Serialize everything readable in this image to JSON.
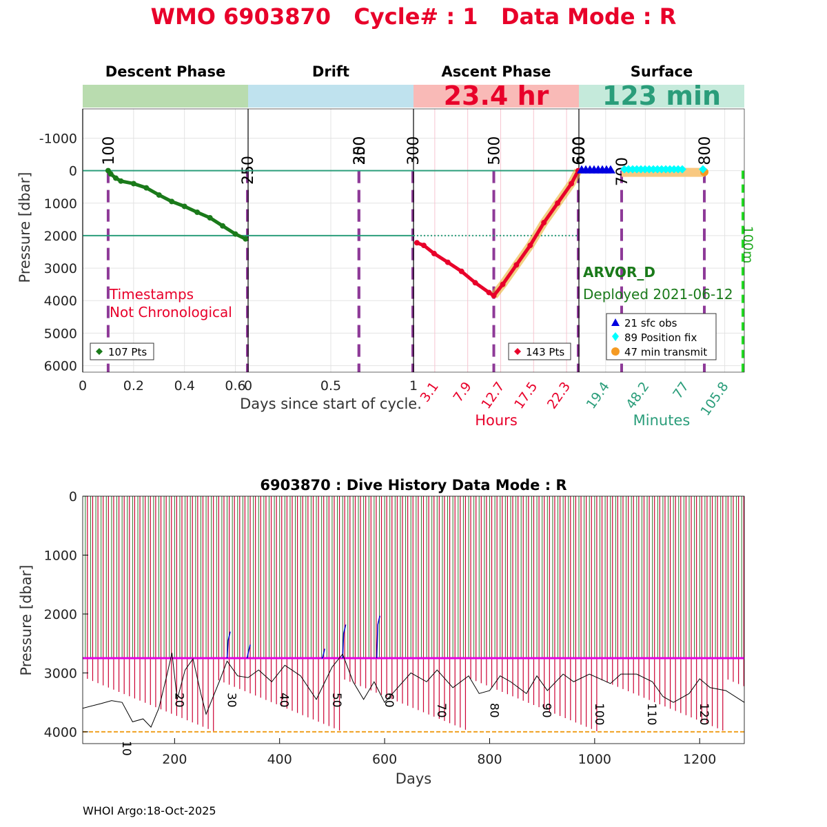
{
  "title": "WMO 6903870   Cycle# : 1   Data Mode : R",
  "footer": "WHOI Argo:18-Oct-2025",
  "colors": {
    "title": "#e8002a",
    "descent_band": "#b9dcaf",
    "drift_band": "#bfe2ee",
    "ascent_band": "#f9bab7",
    "surface_band": "#c5eadb",
    "descent_pts": "#1a7a1a",
    "ascent_pts": "#e8002a",
    "ref_line": "#2a9d7a",
    "marker_line": "#8e3a98",
    "surface_teal": "#2a9d7a",
    "sfc_obs": "#0000e0",
    "position_fix": "#00ffff",
    "transmit": "#f59a23",
    "green_dash": "#22dd22"
  },
  "chart_data": [
    {
      "type": "scatter",
      "name": "cycle-profile",
      "ylabel": "Pressure [dbar]",
      "ylim": [
        -1900,
        6200
      ],
      "yticks": [
        -1000,
        0,
        1000,
        2000,
        3000,
        4000,
        5000,
        6000
      ],
      "yticklabels": [
        "-1000",
        "0",
        "1000",
        "2000",
        "3000",
        "4000",
        "5000",
        "6000"
      ],
      "ref_lines": [
        0,
        2000
      ],
      "annotation_nonchrono": [
        "Timestamps",
        "Not Chronological"
      ],
      "float_model": "ARVOR_D",
      "deployed": "Deployed 2021-06-12",
      "legend": [
        "21 sfc obs",
        "89 Position fix",
        "47 min transmit"
      ],
      "panels": [
        {
          "phase": "descent",
          "title": "Descent Phase",
          "xlim": [
            0,
            0.65
          ],
          "xticks": [
            0,
            0.2,
            0.4,
            0.6
          ],
          "xticklabels": [
            "0",
            "0.2",
            "0.4",
            "0.6"
          ],
          "xlabel": "Days since start of cycle.",
          "points_label": "107 Pts",
          "markers": [
            {
              "x": 0.1,
              "label": "100"
            },
            {
              "x": 0.65,
              "label": "250"
            }
          ],
          "points": [
            [
              0.1,
              0
            ],
            [
              0.11,
              100
            ],
            [
              0.13,
              230
            ],
            [
              0.15,
              320
            ],
            [
              0.2,
              400
            ],
            [
              0.25,
              530
            ],
            [
              0.3,
              750
            ],
            [
              0.35,
              950
            ],
            [
              0.4,
              1100
            ],
            [
              0.45,
              1280
            ],
            [
              0.5,
              1450
            ],
            [
              0.55,
              1700
            ],
            [
              0.6,
              1950
            ],
            [
              0.64,
              2100
            ]
          ]
        },
        {
          "phase": "drift",
          "title": "Drift",
          "xlim": [
            0,
            1
          ],
          "xticks": [
            0,
            0.5,
            1
          ],
          "xticklabels": [
            "0",
            "0.5",
            "1"
          ],
          "markers": [
            {
              "x": 0.67,
              "label": "250"
            },
            {
              "x": 0.67,
              "label": "300"
            },
            {
              "x": 1.0,
              "label": "300"
            }
          ]
        },
        {
          "phase": "ascent",
          "title": "Ascent Phase",
          "duration": "23.4 hr",
          "xlim": [
            0,
            24.1
          ],
          "xticks": [
            3.1,
            7.9,
            12.7,
            17.5,
            22.3
          ],
          "xticklabels": [
            "3.1",
            "7.9",
            "12.7",
            "17.5",
            "22.3"
          ],
          "xlabel": "Hours",
          "points_label": "143 Pts",
          "markers": [
            {
              "x": 11.7,
              "label": "500"
            },
            {
              "x": 24.1,
              "label": "600"
            }
          ],
          "points": [
            [
              0.5,
              2220
            ],
            [
              1.5,
              2300
            ],
            [
              3,
              2550
            ],
            [
              5,
              2820
            ],
            [
              7,
              3100
            ],
            [
              9,
              3450
            ],
            [
              11,
              3750
            ],
            [
              11.7,
              3850
            ],
            [
              13,
              3500
            ],
            [
              15,
              2900
            ],
            [
              17,
              2300
            ],
            [
              19,
              1600
            ],
            [
              21,
              1000
            ],
            [
              23,
              400
            ],
            [
              24,
              0
            ]
          ]
        },
        {
          "phase": "surface",
          "title": "Surface",
          "duration": "123 min",
          "xlim": [
            0,
            120
          ],
          "xticks": [
            19.4,
            48.2,
            77,
            105.8
          ],
          "xticklabels": [
            "19.4",
            "48.2",
            "77",
            "105.8"
          ],
          "xlabel": "Minutes",
          "markers": [
            {
              "x": 6,
              "label": "600"
            },
            {
              "x": 31,
              "label": "700"
            },
            {
              "x": 91,
              "label": "800"
            },
            {
              "x": 120,
              "label": "100m"
            }
          ],
          "sfc_obs": [
            2,
            5,
            8,
            11,
            14,
            17,
            20,
            23
          ],
          "position_fix": [
            33,
            36,
            39,
            42,
            45,
            48,
            51,
            54,
            57,
            60,
            63,
            66,
            69,
            72,
            75,
            90
          ],
          "transmit_range": [
            31,
            91
          ]
        }
      ]
    },
    {
      "type": "line",
      "name": "dive-history",
      "title": "6903870 : Dive History      Data Mode : R",
      "xlabel": "Days",
      "ylabel": "Pressure [dbar]",
      "xlim": [
        25,
        1285
      ],
      "ylim": [
        0,
        4200
      ],
      "xticks": [
        200,
        400,
        600,
        800,
        1000,
        1200
      ],
      "xticklabels": [
        "200",
        "400",
        "600",
        "800",
        "1000",
        "1200"
      ],
      "yticks": [
        0,
        1000,
        2000,
        3000,
        4000
      ],
      "yticklabels": [
        "0",
        "1000",
        "2000",
        "3000",
        "4000"
      ],
      "cycle_labels": [
        {
          "cycle": "10",
          "day": 117
        },
        {
          "cycle": "20",
          "day": 217
        },
        {
          "cycle": "30",
          "day": 317
        },
        {
          "cycle": "40",
          "day": 417
        },
        {
          "cycle": "50",
          "day": 517
        },
        {
          "cycle": "60",
          "day": 617
        },
        {
          "cycle": "70",
          "day": 717
        },
        {
          "cycle": "80",
          "day": 817
        },
        {
          "cycle": "90",
          "day": 917
        },
        {
          "cycle": "100",
          "day": 1017
        },
        {
          "cycle": "110",
          "day": 1117
        },
        {
          "cycle": "120",
          "day": 1217
        }
      ],
      "cycle_period_days": 10,
      "drift_pressure": 2750,
      "max_pressure_line": 4000,
      "bathymetry": [
        [
          25,
          3600
        ],
        [
          60,
          3520
        ],
        [
          80,
          3470
        ],
        [
          100,
          3500
        ],
        [
          120,
          3830
        ],
        [
          140,
          3780
        ],
        [
          155,
          3920
        ],
        [
          170,
          3600
        ],
        [
          185,
          3050
        ],
        [
          195,
          2660
        ],
        [
          205,
          3450
        ],
        [
          220,
          2950
        ],
        [
          235,
          2760
        ],
        [
          250,
          3350
        ],
        [
          260,
          3700
        ],
        [
          285,
          3150
        ],
        [
          300,
          2800
        ],
        [
          320,
          3050
        ],
        [
          340,
          3080
        ],
        [
          360,
          2950
        ],
        [
          385,
          3150
        ],
        [
          410,
          2870
        ],
        [
          440,
          3050
        ],
        [
          470,
          3450
        ],
        [
          500,
          2900
        ],
        [
          520,
          2680
        ],
        [
          540,
          3150
        ],
        [
          560,
          3450
        ],
        [
          580,
          3150
        ],
        [
          600,
          3500
        ],
        [
          620,
          3300
        ],
        [
          650,
          3000
        ],
        [
          680,
          3150
        ],
        [
          700,
          2950
        ],
        [
          730,
          3250
        ],
        [
          760,
          3050
        ],
        [
          780,
          3350
        ],
        [
          800,
          3300
        ],
        [
          820,
          3050
        ],
        [
          840,
          3150
        ],
        [
          870,
          3350
        ],
        [
          890,
          3050
        ],
        [
          910,
          3300
        ],
        [
          940,
          3020
        ],
        [
          960,
          3150
        ],
        [
          990,
          3020
        ],
        [
          1010,
          3100
        ],
        [
          1030,
          3180
        ],
        [
          1050,
          3020
        ],
        [
          1080,
          3020
        ],
        [
          1110,
          3150
        ],
        [
          1130,
          3400
        ],
        [
          1150,
          3500
        ],
        [
          1180,
          3350
        ],
        [
          1200,
          3100
        ],
        [
          1220,
          3250
        ],
        [
          1250,
          3300
        ],
        [
          1285,
          3500
        ]
      ]
    }
  ]
}
